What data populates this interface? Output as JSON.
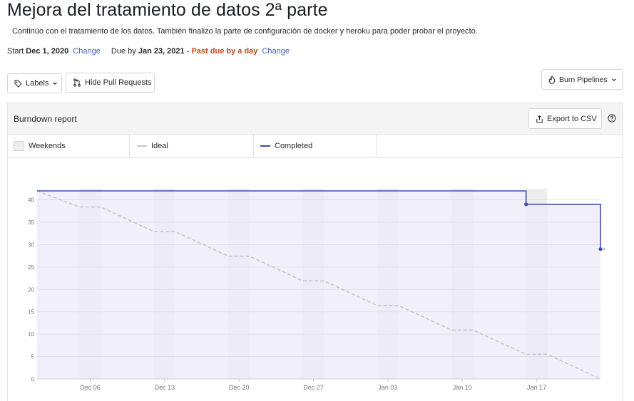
{
  "milestone": {
    "title": "Mejora del tratamiento de datos 2ª parte",
    "description": "Continúo con el tratamiento de los datos. También finalizo la parte de configuración de docker y heroku para poder probar el proyecto.",
    "start_label": "Start",
    "start_date": "Dec 1, 2020",
    "change_label": "Change",
    "due_label": "Due by",
    "due_date": "Jan 23, 2021",
    "separator": "-",
    "past_due": "Past due by a day"
  },
  "toolbar": {
    "labels_button": "Labels",
    "hide_prs_button": "Hide Pull Requests",
    "burn_pipelines_button": "Burn Pipelines"
  },
  "report": {
    "title": "Burndown report",
    "export_button": "Export to CSV"
  },
  "legend": {
    "weekends": "Weekends",
    "ideal": "Ideal",
    "completed": "Completed"
  },
  "colors": {
    "completed": "#3f4fa8",
    "ideal": "#c5c5cf",
    "area_fill": "#ebeaf8",
    "weekend": "#e0e0e8",
    "past_due": "#b94a20",
    "link": "#4a5cb8"
  },
  "chart_data": {
    "type": "line",
    "ylim": [
      0,
      42
    ],
    "y_ticks": [
      0,
      5,
      10,
      15,
      20,
      25,
      30,
      35,
      40
    ],
    "x_range": [
      "2020-12-01",
      "2021-01-23"
    ],
    "x_tick_labels": [
      "Dec 06",
      "Dec 13",
      "Dec 20",
      "Dec 27",
      "Jan 03",
      "Jan 10",
      "Jan 17"
    ],
    "x_tick_dates": [
      "2020-12-06",
      "2020-12-13",
      "2020-12-20",
      "2020-12-27",
      "2021-01-03",
      "2021-01-10",
      "2021-01-17"
    ],
    "weekends": [
      [
        "2020-12-05",
        "2020-12-07"
      ],
      [
        "2020-12-12",
        "2020-12-14"
      ],
      [
        "2020-12-19",
        "2020-12-21"
      ],
      [
        "2020-12-26",
        "2020-12-28"
      ],
      [
        "2021-01-02",
        "2021-01-04"
      ],
      [
        "2021-01-09",
        "2021-01-11"
      ],
      [
        "2021-01-16",
        "2021-01-18"
      ],
      [
        "2021-01-23",
        "2021-01-24"
      ]
    ],
    "series": [
      {
        "name": "Ideal",
        "points": [
          [
            "2020-12-01",
            42
          ],
          [
            "2020-12-05",
            38.4
          ],
          [
            "2020-12-07",
            38.4
          ],
          [
            "2020-12-12",
            32.9
          ],
          [
            "2020-12-14",
            32.9
          ],
          [
            "2020-12-19",
            27.4
          ],
          [
            "2020-12-21",
            27.4
          ],
          [
            "2020-12-26",
            21.9
          ],
          [
            "2020-12-28",
            21.9
          ],
          [
            "2021-01-02",
            16.4
          ],
          [
            "2021-01-04",
            16.4
          ],
          [
            "2021-01-09",
            10.9
          ],
          [
            "2021-01-11",
            10.9
          ],
          [
            "2021-01-16",
            5.5
          ],
          [
            "2021-01-18",
            5.5
          ],
          [
            "2021-01-23",
            0
          ]
        ]
      },
      {
        "name": "Completed",
        "points": [
          [
            "2020-12-01",
            42
          ],
          [
            "2021-01-16",
            42
          ],
          [
            "2021-01-16",
            39
          ],
          [
            "2021-01-23",
            39
          ],
          [
            "2021-01-23",
            29
          ]
        ],
        "markers": [
          [
            "2021-01-16",
            39
          ],
          [
            "2021-01-23",
            29
          ]
        ]
      }
    ]
  }
}
